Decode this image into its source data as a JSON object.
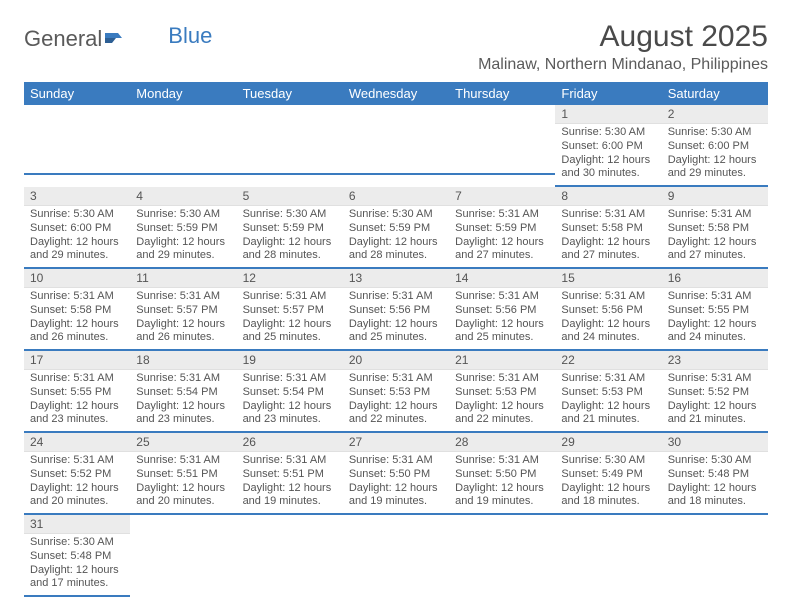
{
  "logo": {
    "general": "General",
    "blue": "Blue"
  },
  "title": "August 2025",
  "location": "Malinaw, Northern Mindanao, Philippines",
  "colors": {
    "accent": "#3a7bbf",
    "header_bg": "#3a7bbf",
    "daynum_bg": "#ececec",
    "text": "#4a4a4a"
  },
  "day_headers": [
    "Sunday",
    "Monday",
    "Tuesday",
    "Wednesday",
    "Thursday",
    "Friday",
    "Saturday"
  ],
  "weeks": [
    [
      {
        "n": "",
        "sr": "",
        "ss": "",
        "dl1": "",
        "dl2": ""
      },
      {
        "n": "",
        "sr": "",
        "ss": "",
        "dl1": "",
        "dl2": ""
      },
      {
        "n": "",
        "sr": "",
        "ss": "",
        "dl1": "",
        "dl2": ""
      },
      {
        "n": "",
        "sr": "",
        "ss": "",
        "dl1": "",
        "dl2": ""
      },
      {
        "n": "",
        "sr": "",
        "ss": "",
        "dl1": "",
        "dl2": ""
      },
      {
        "n": "1",
        "sr": "Sunrise: 5:30 AM",
        "ss": "Sunset: 6:00 PM",
        "dl1": "Daylight: 12 hours",
        "dl2": "and 30 minutes."
      },
      {
        "n": "2",
        "sr": "Sunrise: 5:30 AM",
        "ss": "Sunset: 6:00 PM",
        "dl1": "Daylight: 12 hours",
        "dl2": "and 29 minutes."
      }
    ],
    [
      {
        "n": "3",
        "sr": "Sunrise: 5:30 AM",
        "ss": "Sunset: 6:00 PM",
        "dl1": "Daylight: 12 hours",
        "dl2": "and 29 minutes."
      },
      {
        "n": "4",
        "sr": "Sunrise: 5:30 AM",
        "ss": "Sunset: 5:59 PM",
        "dl1": "Daylight: 12 hours",
        "dl2": "and 29 minutes."
      },
      {
        "n": "5",
        "sr": "Sunrise: 5:30 AM",
        "ss": "Sunset: 5:59 PM",
        "dl1": "Daylight: 12 hours",
        "dl2": "and 28 minutes."
      },
      {
        "n": "6",
        "sr": "Sunrise: 5:30 AM",
        "ss": "Sunset: 5:59 PM",
        "dl1": "Daylight: 12 hours",
        "dl2": "and 28 minutes."
      },
      {
        "n": "7",
        "sr": "Sunrise: 5:31 AM",
        "ss": "Sunset: 5:59 PM",
        "dl1": "Daylight: 12 hours",
        "dl2": "and 27 minutes."
      },
      {
        "n": "8",
        "sr": "Sunrise: 5:31 AM",
        "ss": "Sunset: 5:58 PM",
        "dl1": "Daylight: 12 hours",
        "dl2": "and 27 minutes."
      },
      {
        "n": "9",
        "sr": "Sunrise: 5:31 AM",
        "ss": "Sunset: 5:58 PM",
        "dl1": "Daylight: 12 hours",
        "dl2": "and 27 minutes."
      }
    ],
    [
      {
        "n": "10",
        "sr": "Sunrise: 5:31 AM",
        "ss": "Sunset: 5:58 PM",
        "dl1": "Daylight: 12 hours",
        "dl2": "and 26 minutes."
      },
      {
        "n": "11",
        "sr": "Sunrise: 5:31 AM",
        "ss": "Sunset: 5:57 PM",
        "dl1": "Daylight: 12 hours",
        "dl2": "and 26 minutes."
      },
      {
        "n": "12",
        "sr": "Sunrise: 5:31 AM",
        "ss": "Sunset: 5:57 PM",
        "dl1": "Daylight: 12 hours",
        "dl2": "and 25 minutes."
      },
      {
        "n": "13",
        "sr": "Sunrise: 5:31 AM",
        "ss": "Sunset: 5:56 PM",
        "dl1": "Daylight: 12 hours",
        "dl2": "and 25 minutes."
      },
      {
        "n": "14",
        "sr": "Sunrise: 5:31 AM",
        "ss": "Sunset: 5:56 PM",
        "dl1": "Daylight: 12 hours",
        "dl2": "and 25 minutes."
      },
      {
        "n": "15",
        "sr": "Sunrise: 5:31 AM",
        "ss": "Sunset: 5:56 PM",
        "dl1": "Daylight: 12 hours",
        "dl2": "and 24 minutes."
      },
      {
        "n": "16",
        "sr": "Sunrise: 5:31 AM",
        "ss": "Sunset: 5:55 PM",
        "dl1": "Daylight: 12 hours",
        "dl2": "and 24 minutes."
      }
    ],
    [
      {
        "n": "17",
        "sr": "Sunrise: 5:31 AM",
        "ss": "Sunset: 5:55 PM",
        "dl1": "Daylight: 12 hours",
        "dl2": "and 23 minutes."
      },
      {
        "n": "18",
        "sr": "Sunrise: 5:31 AM",
        "ss": "Sunset: 5:54 PM",
        "dl1": "Daylight: 12 hours",
        "dl2": "and 23 minutes."
      },
      {
        "n": "19",
        "sr": "Sunrise: 5:31 AM",
        "ss": "Sunset: 5:54 PM",
        "dl1": "Daylight: 12 hours",
        "dl2": "and 23 minutes."
      },
      {
        "n": "20",
        "sr": "Sunrise: 5:31 AM",
        "ss": "Sunset: 5:53 PM",
        "dl1": "Daylight: 12 hours",
        "dl2": "and 22 minutes."
      },
      {
        "n": "21",
        "sr": "Sunrise: 5:31 AM",
        "ss": "Sunset: 5:53 PM",
        "dl1": "Daylight: 12 hours",
        "dl2": "and 22 minutes."
      },
      {
        "n": "22",
        "sr": "Sunrise: 5:31 AM",
        "ss": "Sunset: 5:53 PM",
        "dl1": "Daylight: 12 hours",
        "dl2": "and 21 minutes."
      },
      {
        "n": "23",
        "sr": "Sunrise: 5:31 AM",
        "ss": "Sunset: 5:52 PM",
        "dl1": "Daylight: 12 hours",
        "dl2": "and 21 minutes."
      }
    ],
    [
      {
        "n": "24",
        "sr": "Sunrise: 5:31 AM",
        "ss": "Sunset: 5:52 PM",
        "dl1": "Daylight: 12 hours",
        "dl2": "and 20 minutes."
      },
      {
        "n": "25",
        "sr": "Sunrise: 5:31 AM",
        "ss": "Sunset: 5:51 PM",
        "dl1": "Daylight: 12 hours",
        "dl2": "and 20 minutes."
      },
      {
        "n": "26",
        "sr": "Sunrise: 5:31 AM",
        "ss": "Sunset: 5:51 PM",
        "dl1": "Daylight: 12 hours",
        "dl2": "and 19 minutes."
      },
      {
        "n": "27",
        "sr": "Sunrise: 5:31 AM",
        "ss": "Sunset: 5:50 PM",
        "dl1": "Daylight: 12 hours",
        "dl2": "and 19 minutes."
      },
      {
        "n": "28",
        "sr": "Sunrise: 5:31 AM",
        "ss": "Sunset: 5:50 PM",
        "dl1": "Daylight: 12 hours",
        "dl2": "and 19 minutes."
      },
      {
        "n": "29",
        "sr": "Sunrise: 5:30 AM",
        "ss": "Sunset: 5:49 PM",
        "dl1": "Daylight: 12 hours",
        "dl2": "and 18 minutes."
      },
      {
        "n": "30",
        "sr": "Sunrise: 5:30 AM",
        "ss": "Sunset: 5:48 PM",
        "dl1": "Daylight: 12 hours",
        "dl2": "and 18 minutes."
      }
    ],
    [
      {
        "n": "31",
        "sr": "Sunrise: 5:30 AM",
        "ss": "Sunset: 5:48 PM",
        "dl1": "Daylight: 12 hours",
        "dl2": "and 17 minutes."
      },
      {
        "n": "",
        "sr": "",
        "ss": "",
        "dl1": "",
        "dl2": ""
      },
      {
        "n": "",
        "sr": "",
        "ss": "",
        "dl1": "",
        "dl2": ""
      },
      {
        "n": "",
        "sr": "",
        "ss": "",
        "dl1": "",
        "dl2": ""
      },
      {
        "n": "",
        "sr": "",
        "ss": "",
        "dl1": "",
        "dl2": ""
      },
      {
        "n": "",
        "sr": "",
        "ss": "",
        "dl1": "",
        "dl2": ""
      },
      {
        "n": "",
        "sr": "",
        "ss": "",
        "dl1": "",
        "dl2": ""
      }
    ]
  ]
}
